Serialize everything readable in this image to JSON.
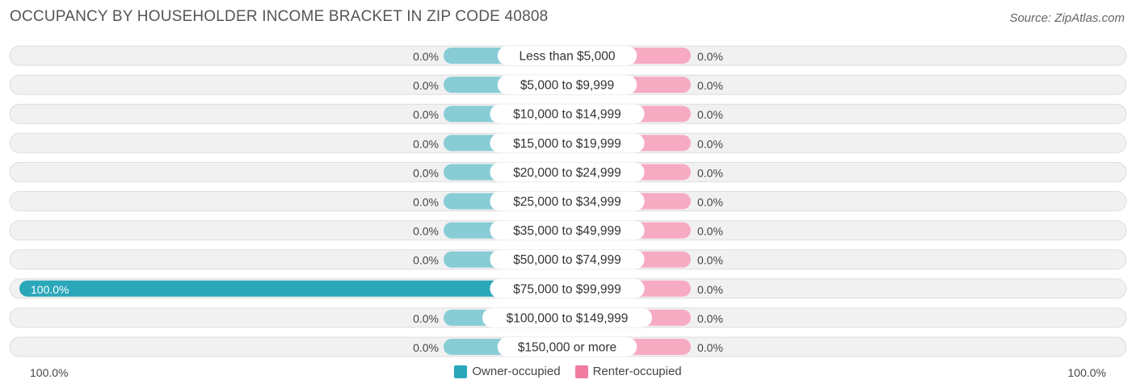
{
  "header": {
    "title": "OCCUPANCY BY HOUSEHOLDER INCOME BRACKET IN ZIP CODE 40808",
    "source": "Source: ZipAtlas.com"
  },
  "colors": {
    "owner": "#2aa7b9",
    "owner_light": "#88ccd6",
    "renter": "#f07ba0",
    "renter_light": "#f7abc3",
    "track_bg": "#f1f1f1",
    "track_border": "#dddddd"
  },
  "axis": {
    "left_label": "100.0%",
    "right_label": "100.0%"
  },
  "legend": {
    "owner_label": "Owner-occupied",
    "renter_label": "Renter-occupied"
  },
  "chart_data": {
    "type": "bar",
    "orientation": "diverging-horizontal",
    "title": "OCCUPANCY BY HOUSEHOLDER INCOME BRACKET IN ZIP CODE 40808",
    "xlim": [
      -100,
      100
    ],
    "categories": [
      "Less than $5,000",
      "$5,000 to $9,999",
      "$10,000 to $14,999",
      "$15,000 to $19,999",
      "$20,000 to $24,999",
      "$25,000 to $34,999",
      "$35,000 to $49,999",
      "$50,000 to $74,999",
      "$75,000 to $99,999",
      "$100,000 to $149,999",
      "$150,000 or more"
    ],
    "series": [
      {
        "name": "Owner-occupied",
        "values": [
          0,
          0,
          0,
          0,
          0,
          0,
          0,
          0,
          100,
          0,
          0
        ],
        "labels": [
          "0.0%",
          "0.0%",
          "0.0%",
          "0.0%",
          "0.0%",
          "0.0%",
          "0.0%",
          "0.0%",
          "100.0%",
          "0.0%",
          "0.0%"
        ]
      },
      {
        "name": "Renter-occupied",
        "values": [
          0,
          0,
          0,
          0,
          0,
          0,
          0,
          0,
          0,
          0,
          0
        ],
        "labels": [
          "0.0%",
          "0.0%",
          "0.0%",
          "0.0%",
          "0.0%",
          "0.0%",
          "0.0%",
          "0.0%",
          "0.0%",
          "0.0%",
          "0.0%"
        ]
      }
    ]
  }
}
